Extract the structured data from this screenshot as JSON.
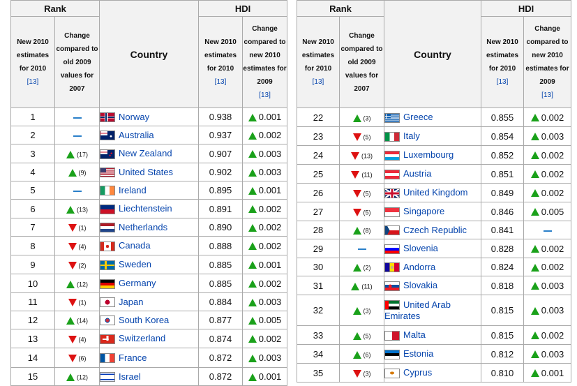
{
  "headers": {
    "rank": "Rank",
    "hdi": "HDI",
    "country": "Country",
    "new_rank": "New 2010 estimates for 2010",
    "change_rank": "Change compared to old 2009 values for 2007",
    "new_hdi": "New 2010 estimates for 2010",
    "change_hdi": "Change compared to new 2010 estimates for 2009",
    "cite": "[13]"
  },
  "left_rows": [
    {
      "rank": "1",
      "dir": "same",
      "chg": "",
      "country": "Norway",
      "flag": "norway",
      "hdi": "0.938",
      "ddir": "up",
      "delta": "0.001",
      "h": 26
    },
    {
      "rank": "2",
      "dir": "same",
      "chg": "",
      "country": "Australia",
      "flag": "australia",
      "hdi": "0.937",
      "ddir": "up",
      "delta": "0.002",
      "h": 26
    },
    {
      "rank": "3",
      "dir": "up",
      "chg": "(17)",
      "country": "New Zealand",
      "flag": "newzealand",
      "hdi": "0.907",
      "ddir": "up",
      "delta": "0.003",
      "h": 27
    },
    {
      "rank": "4",
      "dir": "up",
      "chg": "(9)",
      "country": "United States",
      "flag": "usa",
      "hdi": "0.902",
      "ddir": "up",
      "delta": "0.003",
      "h": 26
    },
    {
      "rank": "5",
      "dir": "same",
      "chg": "",
      "country": "Ireland",
      "flag": "ireland",
      "hdi": "0.895",
      "ddir": "up",
      "delta": "0.001",
      "h": 26
    },
    {
      "rank": "6",
      "dir": "up",
      "chg": "(13)",
      "country": "Liechtenstein",
      "flag": "liechtenstein",
      "hdi": "0.891",
      "ddir": "up",
      "delta": "0.002",
      "h": 27
    },
    {
      "rank": "7",
      "dir": "down",
      "chg": "(1)",
      "country": "Netherlands",
      "flag": "netherlands",
      "hdi": "0.890",
      "ddir": "up",
      "delta": "0.002",
      "h": 26
    },
    {
      "rank": "8",
      "dir": "down",
      "chg": "(4)",
      "country": "Canada",
      "flag": "canada",
      "hdi": "0.888",
      "ddir": "up",
      "delta": "0.002",
      "h": 27
    },
    {
      "rank": "9",
      "dir": "down",
      "chg": "(2)",
      "country": "Sweden",
      "flag": "sweden",
      "hdi": "0.885",
      "ddir": "up",
      "delta": "0.001",
      "h": 27
    },
    {
      "rank": "10",
      "dir": "up",
      "chg": "(12)",
      "country": "Germany",
      "flag": "germany",
      "hdi": "0.885",
      "ddir": "up",
      "delta": "0.002",
      "h": 27
    },
    {
      "rank": "11",
      "dir": "down",
      "chg": "(1)",
      "country": "Japan",
      "flag": "japan",
      "hdi": "0.884",
      "ddir": "up",
      "delta": "0.003",
      "h": 26
    },
    {
      "rank": "12",
      "dir": "up",
      "chg": "(14)",
      "country": "South Korea",
      "flag": "southkorea",
      "hdi": "0.877",
      "ddir": "up",
      "delta": "0.005",
      "h": 26
    },
    {
      "rank": "13",
      "dir": "down",
      "chg": "(4)",
      "country": "Switzerland",
      "flag": "switzerland",
      "hdi": "0.874",
      "ddir": "up",
      "delta": "0.002",
      "h": 27
    },
    {
      "rank": "14",
      "dir": "down",
      "chg": "(6)",
      "country": "France",
      "flag": "france",
      "hdi": "0.872",
      "ddir": "up",
      "delta": "0.003",
      "h": 28
    },
    {
      "rank": "15",
      "dir": "up",
      "chg": "(12)",
      "country": "Israel",
      "flag": "israel",
      "hdi": "0.872",
      "ddir": "up",
      "delta": "0.001",
      "h": 26
    }
  ],
  "right_rows": [
    {
      "rank": "22",
      "dir": "up",
      "chg": "(3)",
      "country": "Greece",
      "flag": "greece",
      "hdi": "0.855",
      "ddir": "up",
      "delta": "0.002",
      "h": 27
    },
    {
      "rank": "23",
      "dir": "down",
      "chg": "(5)",
      "country": "Italy",
      "flag": "italy",
      "hdi": "0.854",
      "ddir": "up",
      "delta": "0.003",
      "h": 27
    },
    {
      "rank": "24",
      "dir": "down",
      "chg": "(13)",
      "country": "Luxembourg",
      "flag": "luxembourg",
      "hdi": "0.852",
      "ddir": "up",
      "delta": "0.002",
      "h": 27
    },
    {
      "rank": "25",
      "dir": "down",
      "chg": "(11)",
      "country": "Austria",
      "flag": "austria",
      "hdi": "0.851",
      "ddir": "up",
      "delta": "0.002",
      "h": 27
    },
    {
      "rank": "26",
      "dir": "down",
      "chg": "(5)",
      "country": "United Kingdom",
      "flag": "uk",
      "hdi": "0.849",
      "ddir": "up",
      "delta": "0.002",
      "h": 27
    },
    {
      "rank": "27",
      "dir": "down",
      "chg": "(5)",
      "country": "Singapore",
      "flag": "singapore",
      "hdi": "0.846",
      "ddir": "up",
      "delta": "0.005",
      "h": 27
    },
    {
      "rank": "28",
      "dir": "up",
      "chg": "(8)",
      "country": "Czech Republic",
      "flag": "czech",
      "hdi": "0.841",
      "ddir": "same",
      "delta": "",
      "h": 26
    },
    {
      "rank": "29",
      "dir": "same",
      "chg": "",
      "country": "Slovenia",
      "flag": "slovenia",
      "hdi": "0.828",
      "ddir": "up",
      "delta": "0.002",
      "h": 27
    },
    {
      "rank": "30",
      "dir": "up",
      "chg": "(2)",
      "country": "Andorra",
      "flag": "andorra",
      "hdi": "0.824",
      "ddir": "up",
      "delta": "0.002",
      "h": 26
    },
    {
      "rank": "31",
      "dir": "up",
      "chg": "(11)",
      "country": "Slovakia",
      "flag": "slovakia",
      "hdi": "0.818",
      "ddir": "up",
      "delta": "0.003",
      "h": 27
    },
    {
      "rank": "32",
      "dir": "up",
      "chg": "(3)",
      "country": "United Arab Emirates",
      "flag": "uae",
      "hdi": "0.815",
      "ddir": "up",
      "delta": "0.003",
      "h": 44
    },
    {
      "rank": "33",
      "dir": "up",
      "chg": "(5)",
      "country": "Malta",
      "flag": "malta",
      "hdi": "0.815",
      "ddir": "up",
      "delta": "0.002",
      "h": 27
    },
    {
      "rank": "34",
      "dir": "up",
      "chg": "(6)",
      "country": "Estonia",
      "flag": "estonia",
      "hdi": "0.812",
      "ddir": "up",
      "delta": "0.003",
      "h": 27
    },
    {
      "rank": "35",
      "dir": "down",
      "chg": "(3)",
      "country": "Cyprus",
      "flag": "cyprus",
      "hdi": "0.810",
      "ddir": "up",
      "delta": "0.001",
      "h": 27
    }
  ]
}
